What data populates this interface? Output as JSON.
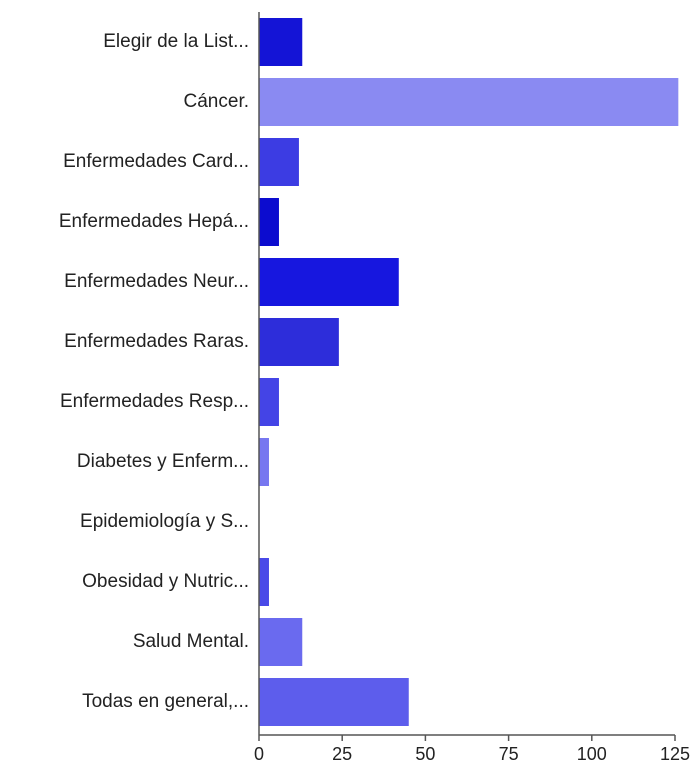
{
  "chart_data": {
    "type": "bar",
    "orientation": "horizontal",
    "title": "",
    "xlabel": "",
    "ylabel": "",
    "categories": [
      "Elegir de la List...",
      "Cáncer.",
      "Enfermedades Card...",
      "Enfermedades Hepá...",
      "Enfermedades Neur...",
      "Enfermedades Raras.",
      "Enfermedades Resp...",
      "Diabetes y Enferm...",
      "Epidemiología y S...",
      "Obesidad y Nutric...",
      "Salud Mental.",
      "Todas en general,..."
    ],
    "values": [
      13,
      126,
      12,
      6,
      42,
      24,
      6,
      3,
      0,
      3,
      13,
      45
    ],
    "colors": [
      "#1414d6",
      "#8a8af2",
      "#3c3ce3",
      "#0c0ccf",
      "#1717df",
      "#2d2dda",
      "#4444e6",
      "#7777f0",
      "#6666ee",
      "#4949e8",
      "#6a6aef",
      "#5d5dec"
    ],
    "xlim": [
      0,
      125
    ],
    "xticks": [
      0,
      25,
      50,
      75,
      100,
      125
    ],
    "grid": false,
    "legend": "none"
  }
}
